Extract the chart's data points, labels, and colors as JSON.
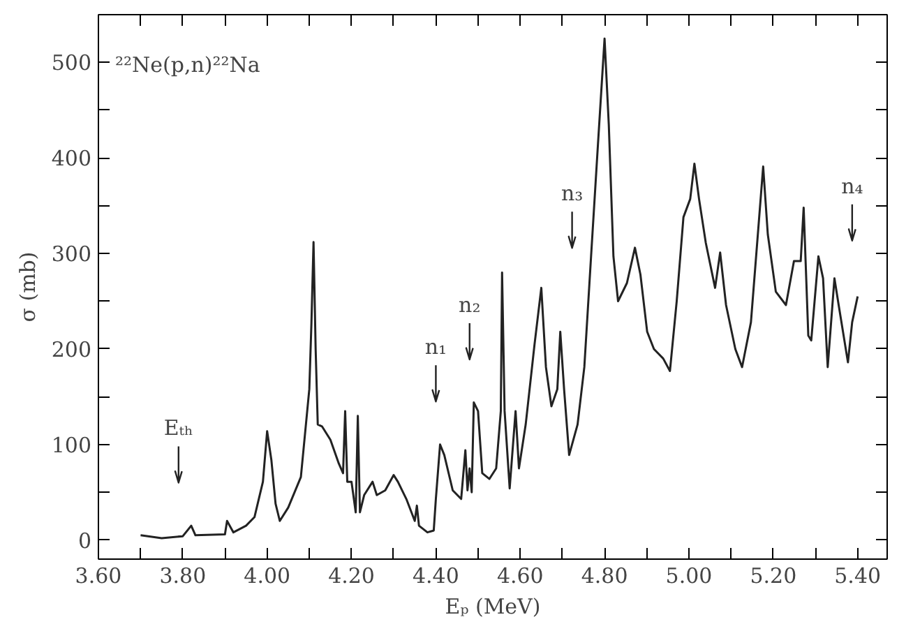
{
  "chart_data": {
    "type": "line",
    "title": "²²Ne(p,n)²²Na",
    "xlabel": "Eₚ (MeV)",
    "ylabel": "σ (mb)",
    "xlim": [
      3.6,
      5.47
    ],
    "ylim": [
      -20,
      550
    ],
    "xticks": [
      {
        "value": 3.6,
        "label": "3.60"
      },
      {
        "value": 3.7,
        "label": null
      },
      {
        "value": 3.8,
        "label": "3.80"
      },
      {
        "value": 3.9,
        "label": null
      },
      {
        "value": 4.0,
        "label": "4.00"
      },
      {
        "value": 4.1,
        "label": null
      },
      {
        "value": 4.2,
        "label": "4.20"
      },
      {
        "value": 4.3,
        "label": null
      },
      {
        "value": 4.4,
        "label": "4.40"
      },
      {
        "value": 4.5,
        "label": null
      },
      {
        "value": 4.6,
        "label": "4.60"
      },
      {
        "value": 4.7,
        "label": null
      },
      {
        "value": 4.8,
        "label": "4.80"
      },
      {
        "value": 4.9,
        "label": null
      },
      {
        "value": 5.0,
        "label": "5.00"
      },
      {
        "value": 5.1,
        "label": null
      },
      {
        "value": 5.2,
        "label": "5.20"
      },
      {
        "value": 5.3,
        "label": null
      },
      {
        "value": 5.4,
        "label": "5.40"
      }
    ],
    "yticks": [
      0,
      {
        "value": 50,
        "label": null
      },
      100,
      {
        "value": 150,
        "label": null
      },
      200,
      {
        "value": 250,
        "label": null
      },
      300,
      {
        "value": 350,
        "label": null
      },
      400,
      {
        "value": 450,
        "label": null
      },
      500
    ],
    "grid": false,
    "line_style": "solid",
    "ref_lines": [
      {
        "axis": "x",
        "value": 3.79,
        "label": "Eₜₕ"
      },
      {
        "axis": "x",
        "value": 4.4,
        "label": "n₁"
      },
      {
        "axis": "x",
        "value": 4.48,
        "label": "n₂"
      },
      {
        "axis": "x",
        "value": 4.723,
        "label": "n₃"
      },
      {
        "axis": "x",
        "value": 5.387,
        "label": "n₄"
      }
    ],
    "series": [
      {
        "color": "#222222",
        "x": [
          3.7,
          3.75,
          3.8,
          3.82,
          3.83,
          3.9,
          3.905,
          3.92,
          3.95,
          3.97,
          3.99,
          4.0,
          4.01,
          4.02,
          4.03,
          4.05,
          4.08,
          4.1,
          4.105,
          4.11,
          4.115,
          4.12,
          4.13,
          4.15,
          4.17,
          4.18,
          4.185,
          4.19,
          4.2,
          4.21,
          4.215,
          4.22,
          4.23,
          4.25,
          4.26,
          4.28,
          4.3,
          4.31,
          4.33,
          4.35,
          4.355,
          4.36,
          4.38,
          4.395,
          4.4,
          4.41,
          4.42,
          4.44,
          4.46,
          4.47,
          4.475,
          4.48,
          4.485,
          4.49,
          4.5,
          4.51,
          4.527,
          4.543,
          4.554,
          4.557,
          4.563,
          4.575,
          4.589,
          4.597,
          4.613,
          4.634,
          4.65,
          4.661,
          4.674,
          4.688,
          4.695,
          4.704,
          4.716,
          4.736,
          4.752,
          4.768,
          4.784,
          4.8,
          4.81,
          4.821,
          4.832,
          4.853,
          4.872,
          4.885,
          4.901,
          4.917,
          4.939,
          4.955,
          4.971,
          4.987,
          5.003,
          5.013,
          5.024,
          5.04,
          5.062,
          5.074,
          5.088,
          5.11,
          5.126,
          5.147,
          5.165,
          5.176,
          5.187,
          5.206,
          5.23,
          5.249,
          5.265,
          5.272,
          5.283,
          5.29,
          5.307,
          5.318,
          5.329,
          5.345,
          5.355,
          5.377,
          5.387,
          5.4
        ],
        "values": [
          5,
          2,
          4,
          15,
          5,
          6,
          20,
          8,
          15,
          24,
          61,
          114,
          84,
          38,
          20,
          34,
          66,
          158,
          227,
          312,
          200,
          121,
          119,
          105,
          80,
          70,
          135,
          61,
          61,
          29,
          130,
          29,
          47,
          61,
          47,
          52,
          68,
          61,
          43,
          20,
          36,
          15,
          8,
          10,
          43,
          100,
          89,
          52,
          43,
          94,
          52,
          75,
          50,
          144,
          135,
          70,
          64,
          75,
          135,
          280,
          135,
          54,
          135,
          75,
          121,
          205,
          264,
          181,
          140,
          158,
          218,
          158,
          89,
          121,
          181,
          297,
          412,
          525,
          435,
          297,
          250,
          269,
          306,
          278,
          218,
          200,
          190,
          177,
          250,
          338,
          357,
          394,
          357,
          311,
          264,
          301,
          246,
          200,
          181,
          228,
          329,
          391,
          320,
          260,
          246,
          292,
          292,
          348,
          214,
          209,
          297,
          274,
          181,
          274,
          246,
          186,
          228,
          255
        ]
      }
    ]
  }
}
